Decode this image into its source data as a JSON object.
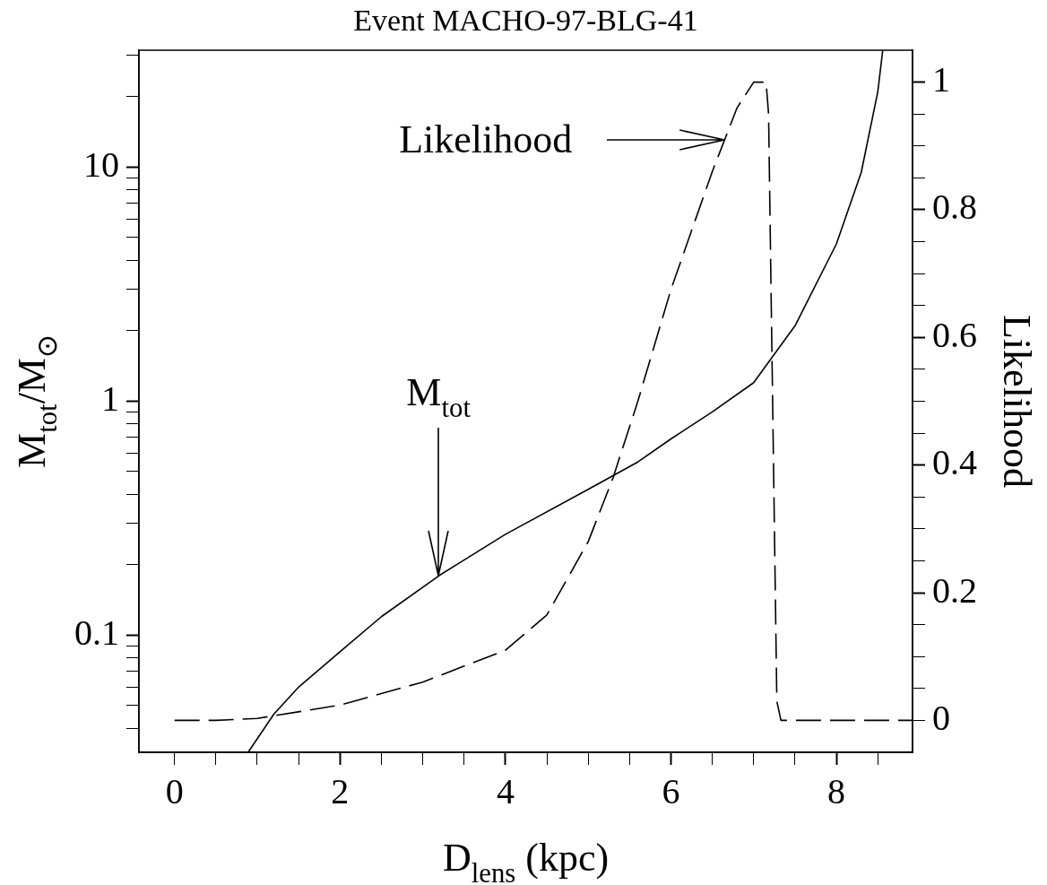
{
  "chart_data": {
    "type": "line",
    "title": "Event MACHO-97-BLG-41",
    "xlabel": "D$_{lens}$ (kpc)",
    "ylabel": "M$_{tot}$/M$_{⊙}$",
    "y2label": "Likelihood",
    "xlim": [
      -0.43,
      8.92
    ],
    "xticks": [
      0,
      {
        "value": 0.5,
        "label": null
      },
      {
        "value": 1,
        "label": null
      },
      {
        "value": 1.5,
        "label": null
      },
      2,
      {
        "value": 2.5,
        "label": null
      },
      {
        "value": 3,
        "label": null
      },
      {
        "value": 3.5,
        "label": null
      },
      4,
      {
        "value": 4.5,
        "label": null
      },
      {
        "value": 5,
        "label": null
      },
      {
        "value": 5.5,
        "label": null
      },
      6,
      {
        "value": 6.5,
        "label": null
      },
      {
        "value": 7,
        "label": null
      },
      {
        "value": 7.5,
        "label": null
      },
      8,
      {
        "value": 8.5,
        "label": null
      }
    ],
    "ylim": [
      0.0316,
      31.6
    ],
    "yticks": [
      {
        "value": 0.04,
        "label": null
      },
      {
        "value": 0.05,
        "label": null
      },
      {
        "value": 0.06,
        "label": null
      },
      {
        "value": 0.07,
        "label": null
      },
      {
        "value": 0.08,
        "label": null
      },
      {
        "value": 0.09,
        "label": null
      },
      0.1,
      {
        "value": 0.2,
        "label": null
      },
      {
        "value": 0.3,
        "label": null
      },
      {
        "value": 0.4,
        "label": null
      },
      {
        "value": 0.5,
        "label": null
      },
      {
        "value": 0.6,
        "label": null
      },
      {
        "value": 0.7,
        "label": null
      },
      {
        "value": 0.8,
        "label": null
      },
      {
        "value": 0.9,
        "label": null
      },
      1,
      {
        "value": 2,
        "label": null
      },
      {
        "value": 3,
        "label": null
      },
      {
        "value": 4,
        "label": null
      },
      {
        "value": 5,
        "label": null
      },
      {
        "value": 6,
        "label": null
      },
      {
        "value": 7,
        "label": null
      },
      {
        "value": 8,
        "label": null
      },
      {
        "value": 9,
        "label": null
      },
      10,
      {
        "value": 20,
        "label": null
      },
      {
        "value": 30,
        "label": null
      }
    ],
    "y2lim": [
      -0.05,
      1.05
    ],
    "y2ticks": [
      0,
      {
        "value": 0.05,
        "label": null
      },
      {
        "value": 0.1,
        "label": null
      },
      {
        "value": 0.15,
        "label": null
      },
      0.2,
      {
        "value": 0.25,
        "label": null
      },
      {
        "value": 0.3,
        "label": null
      },
      {
        "value": 0.35,
        "label": null
      },
      0.4,
      {
        "value": 0.45,
        "label": null
      },
      {
        "value": 0.5,
        "label": null
      },
      {
        "value": 0.55,
        "label": null
      },
      0.6,
      {
        "value": 0.65,
        "label": null
      },
      {
        "value": 0.7,
        "label": null
      },
      {
        "value": 0.75,
        "label": null
      },
      0.8,
      {
        "value": 0.85,
        "label": null
      },
      {
        "value": 0.9,
        "label": null
      },
      {
        "value": 0.95,
        "label": null
      },
      1
    ],
    "log": "y",
    "grid": false,
    "legend": false,
    "marker": "none",
    "series": [
      {
        "color": "#000000",
        "line_style": "solid",
        "x": [
          0.89,
          1.2,
          1.5,
          2,
          2.5,
          3.2,
          4,
          5,
          5.6,
          6,
          6.5,
          7,
          7.5,
          8,
          8.3,
          8.5,
          8.56
        ],
        "values": [
          0.0316,
          0.046,
          0.06,
          0.085,
          0.12,
          0.18,
          0.27,
          0.42,
          0.55,
          0.69,
          0.9,
          1.2,
          2.1,
          4.7,
          9.5,
          21,
          31.6
        ]
      },
      {
        "color": "#000000",
        "line_style": "dashed",
        "axis": "y2",
        "x": [
          0,
          0.5,
          1,
          2,
          3,
          4,
          4.5,
          5,
          5.3,
          5.6,
          6,
          6.5,
          6.8,
          7,
          7.15,
          7.18,
          7.28,
          7.33,
          8,
          8.92
        ],
        "values": [
          0,
          0,
          0.003,
          0.024,
          0.06,
          0.11,
          0.165,
          0.28,
          0.38,
          0.5,
          0.675,
          0.86,
          0.96,
          1,
          1,
          0.95,
          0.03,
          0,
          0,
          0
        ]
      }
    ],
    "annotations": [
      "Likelihood",
      {
        "text": "M$_{tot}$",
        "x": 3.19,
        "y": 0.18
      }
    ]
  }
}
